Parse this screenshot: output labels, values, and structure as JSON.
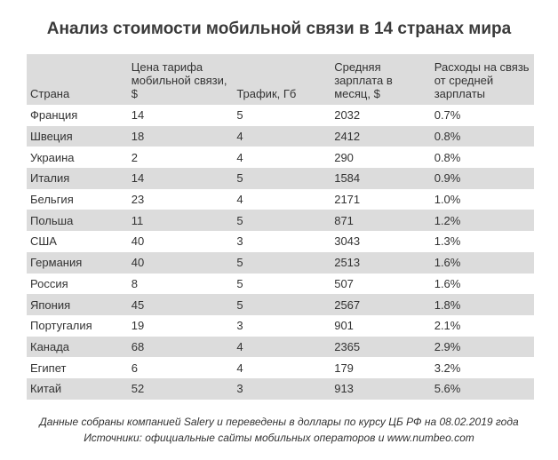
{
  "title": "Анализ стоимости мобильной связи в 14 странах мира",
  "table": {
    "headers": [
      "Страна",
      "Цена тарифа мобильной связи, $",
      "Трафик, Гб",
      "Средняя зарплата в месяц, $",
      "Расходы на связь от средней зарплаты"
    ],
    "rows": [
      [
        "Франция",
        "14",
        "5",
        "2032",
        "0.7%"
      ],
      [
        "Швеция",
        "18",
        "4",
        "2412",
        "0.8%"
      ],
      [
        "Украина",
        "2",
        "4",
        "290",
        "0.8%"
      ],
      [
        "Италия",
        "14",
        "5",
        "1584",
        "0.9%"
      ],
      [
        "Бельгия",
        "23",
        "4",
        "2171",
        "1.0%"
      ],
      [
        "Польша",
        "11",
        "5",
        "871",
        "1.2%"
      ],
      [
        "США",
        "40",
        "3",
        "3043",
        "1.3%"
      ],
      [
        "Германия",
        "40",
        "5",
        "2513",
        "1.6%"
      ],
      [
        "Россия",
        "8",
        "5",
        "507",
        "1.6%"
      ],
      [
        "Япония",
        "45",
        "5",
        "2567",
        "1.8%"
      ],
      [
        "Португалия",
        "19",
        "3",
        "901",
        "2.1%"
      ],
      [
        "Канада",
        "68",
        "4",
        "2365",
        "2.9%"
      ],
      [
        "Египет",
        "6",
        "4",
        "179",
        "3.2%"
      ],
      [
        "Китай",
        "52",
        "3",
        "913",
        "5.6%"
      ]
    ]
  },
  "footnotes": [
    "Данные собраны компанией Salery и переведены в доллары по курсу ЦБ РФ на 08.02.2019 года",
    "Источники: официальные сайты мобильных операторов и www.numbeo.com"
  ],
  "colors": {
    "stripe": "#dcdcdc",
    "text": "#333333"
  }
}
